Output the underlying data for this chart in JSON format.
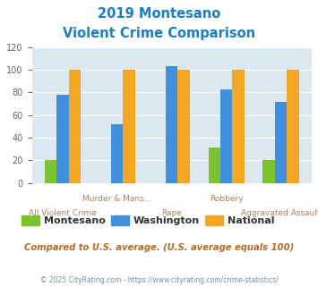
{
  "title_line1": "2019 Montesano",
  "title_line2": "Violent Crime Comparison",
  "categories": [
    "All Violent Crime",
    "Murder & Mans...",
    "Rape",
    "Robbery",
    "Aggravated Assault"
  ],
  "montesano": [
    20,
    0,
    0,
    31,
    20
  ],
  "washington": [
    78,
    52,
    103,
    83,
    72
  ],
  "national": [
    100,
    100,
    100,
    100,
    100
  ],
  "colors": {
    "montesano": "#7dc32b",
    "washington": "#4090e0",
    "national": "#f5a623"
  },
  "ylim": [
    0,
    120
  ],
  "yticks": [
    0,
    20,
    40,
    60,
    80,
    100,
    120
  ],
  "title_color": "#1a7ec8",
  "bg_color": "#dce9f0",
  "footer_text": "Compared to U.S. average. (U.S. average equals 100)",
  "copyright_text": "© 2025 CityRating.com - https://www.cityrating.com/crime-statistics/",
  "footer_color": "#c06820",
  "copyright_color": "#7090a0",
  "label_color_top": "#b08060",
  "label_color_bot": "#b08060"
}
